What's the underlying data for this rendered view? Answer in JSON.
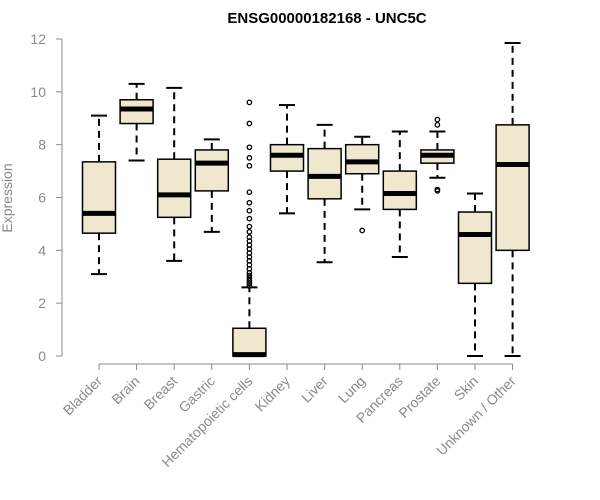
{
  "chart_data": {
    "type": "boxplot",
    "title": "ENSG00000182168 - UNC5C",
    "xlabel": "",
    "ylabel": "Expression",
    "ylim": [
      0,
      12
    ],
    "yticks": [
      0,
      2,
      4,
      6,
      8,
      10,
      12
    ],
    "grid": false,
    "colors": {
      "box_fill": "#efe8cf",
      "box_stroke": "#000000",
      "axis": "#8a8a8a",
      "tick_text": "#8a8a8a",
      "title": "#000000"
    },
    "categories": [
      "Bladder",
      "Brain",
      "Breast",
      "Gastric",
      "Hematopoietic cells",
      "Kidney",
      "Liver",
      "Lung",
      "Pancreas",
      "Prostate",
      "Skin",
      "Unknown / Other"
    ],
    "boxes": [
      {
        "category": "Bladder",
        "whisker_low": 3.1,
        "q1": 4.65,
        "median": 5.4,
        "q3": 7.35,
        "whisker_high": 9.1,
        "outliers": []
      },
      {
        "category": "Brain",
        "whisker_low": 7.4,
        "q1": 8.8,
        "median": 9.35,
        "q3": 9.7,
        "whisker_high": 10.3,
        "outliers": []
      },
      {
        "category": "Breast",
        "whisker_low": 3.6,
        "q1": 5.25,
        "median": 6.1,
        "q3": 7.45,
        "whisker_high": 10.15,
        "outliers": []
      },
      {
        "category": "Gastric",
        "whisker_low": 4.7,
        "q1": 6.25,
        "median": 7.3,
        "q3": 7.8,
        "whisker_high": 8.2,
        "outliers": []
      },
      {
        "category": "Hematopoietic cells",
        "whisker_low": 0.0,
        "q1": 0.0,
        "median": 0.05,
        "q3": 1.05,
        "whisker_high": 2.6,
        "outliers": [
          2.65,
          2.75,
          2.85,
          2.95,
          3.05,
          3.15,
          3.3,
          3.45,
          3.6,
          3.75,
          3.9,
          4.05,
          4.2,
          4.35,
          4.5,
          4.7,
          4.9,
          5.2,
          5.5,
          5.8,
          6.2,
          7.2,
          7.5,
          7.9,
          8.8,
          9.6
        ]
      },
      {
        "category": "Kidney",
        "whisker_low": 5.4,
        "q1": 7.0,
        "median": 7.6,
        "q3": 8.0,
        "whisker_high": 9.5,
        "outliers": []
      },
      {
        "category": "Liver",
        "whisker_low": 3.55,
        "q1": 5.95,
        "median": 6.8,
        "q3": 7.85,
        "whisker_high": 8.75,
        "outliers": []
      },
      {
        "category": "Lung",
        "whisker_low": 5.55,
        "q1": 6.9,
        "median": 7.35,
        "q3": 8.0,
        "whisker_high": 8.3,
        "outliers": [
          4.75
        ]
      },
      {
        "category": "Pancreas",
        "whisker_low": 3.75,
        "q1": 5.55,
        "median": 6.15,
        "q3": 7.0,
        "whisker_high": 8.5,
        "outliers": []
      },
      {
        "category": "Prostate",
        "whisker_low": 6.75,
        "q1": 7.3,
        "median": 7.6,
        "q3": 7.8,
        "whisker_high": 8.5,
        "outliers": [
          6.25,
          6.3,
          8.75,
          8.95
        ]
      },
      {
        "category": "Skin",
        "whisker_low": 0.0,
        "q1": 2.75,
        "median": 4.6,
        "q3": 5.45,
        "whisker_high": 6.15,
        "outliers": []
      },
      {
        "category": "Unknown / Other",
        "whisker_low": 0.0,
        "q1": 4.0,
        "median": 7.25,
        "q3": 8.75,
        "whisker_high": 11.85,
        "outliers": []
      }
    ]
  }
}
